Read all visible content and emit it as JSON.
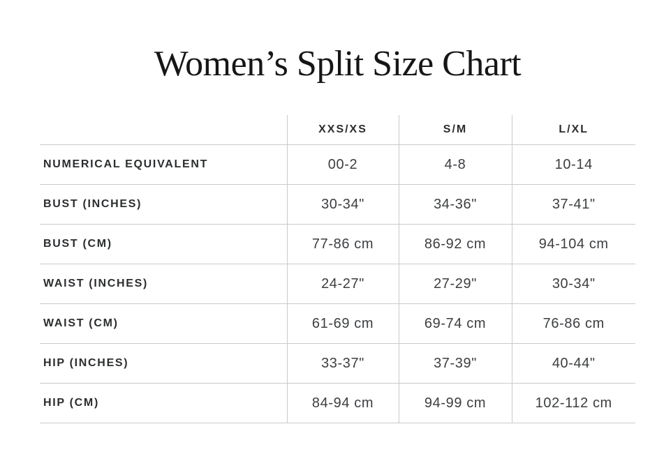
{
  "title": "Women’s Split Size Chart",
  "table": {
    "columns": [
      "",
      "XXS/XS",
      "S/M",
      "L/XL"
    ],
    "rows": [
      {
        "label": "NUMERICAL EQUIVALENT",
        "values": [
          "00-2",
          "4-8",
          "10-14"
        ]
      },
      {
        "label": "BUST (INCHES)",
        "values": [
          "30-34\"",
          "34-36\"",
          "37-41\""
        ]
      },
      {
        "label": "BUST (CM)",
        "values": [
          "77-86 cm",
          "86-92 cm",
          "94-104 cm"
        ]
      },
      {
        "label": "WAIST (INCHES)",
        "values": [
          "24-27\"",
          "27-29\"",
          "30-34\""
        ]
      },
      {
        "label": "WAIST (CM)",
        "values": [
          "61-69 cm",
          "69-74 cm",
          "76-86 cm"
        ]
      },
      {
        "label": "HIP (INCHES)",
        "values": [
          "33-37\"",
          "37-39\"",
          "40-44\""
        ]
      },
      {
        "label": "HIP (CM)",
        "values": [
          "84-94 cm",
          "94-99 cm",
          "102-112 cm"
        ]
      }
    ]
  },
  "colors": {
    "background": "#ffffff",
    "title_text": "#161616",
    "label_text": "#2b2d2f",
    "value_text": "#3c3e40",
    "grid_line": "#c7cbce"
  }
}
